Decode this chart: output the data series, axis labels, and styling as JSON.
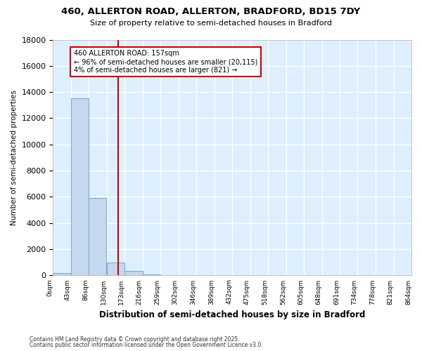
{
  "title_line1": "460, ALLERTON ROAD, ALLERTON, BRADFORD, BD15 7DY",
  "title_line2": "Size of property relative to semi-detached houses in Bradford",
  "xlabel": "Distribution of semi-detached houses by size in Bradford",
  "ylabel": "Number of semi-detached properties",
  "bins": [
    "0sqm",
    "43sqm",
    "86sqm",
    "130sqm",
    "173sqm",
    "216sqm",
    "259sqm",
    "302sqm",
    "346sqm",
    "389sqm",
    "432sqm",
    "475sqm",
    "518sqm",
    "562sqm",
    "605sqm",
    "648sqm",
    "691sqm",
    "734sqm",
    "778sqm",
    "821sqm",
    "864sqm"
  ],
  "bin_edges": [
    0,
    43,
    86,
    130,
    173,
    216,
    259,
    302,
    346,
    389,
    432,
    475,
    518,
    562,
    605,
    648,
    691,
    734,
    778,
    821,
    864
  ],
  "bar_heights": [
    200,
    13500,
    5900,
    1000,
    350,
    100,
    0,
    0,
    0,
    0,
    0,
    0,
    0,
    0,
    0,
    0,
    0,
    0,
    0,
    0
  ],
  "bar_color": "#c5d8ee",
  "bar_edgecolor": "#7badd4",
  "property_size": 157,
  "vline_color": "#cc0000",
  "annotation_text": "460 ALLERTON ROAD: 157sqm\n← 96% of semi-detached houses are smaller (20,115)\n4% of semi-detached houses are larger (821) →",
  "annotation_box_color": "#ffffff",
  "annotation_border_color": "#cc0000",
  "ylim": [
    0,
    18000
  ],
  "yticks": [
    0,
    2000,
    4000,
    6000,
    8000,
    10000,
    12000,
    14000,
    16000,
    18000
  ],
  "fig_background_color": "#ffffff",
  "plot_background_color": "#ddeeff",
  "grid_color": "#ffffff",
  "footnote1": "Contains HM Land Registry data © Crown copyright and database right 2025.",
  "footnote2": "Contains public sector information licensed under the Open Government Licence v3.0."
}
